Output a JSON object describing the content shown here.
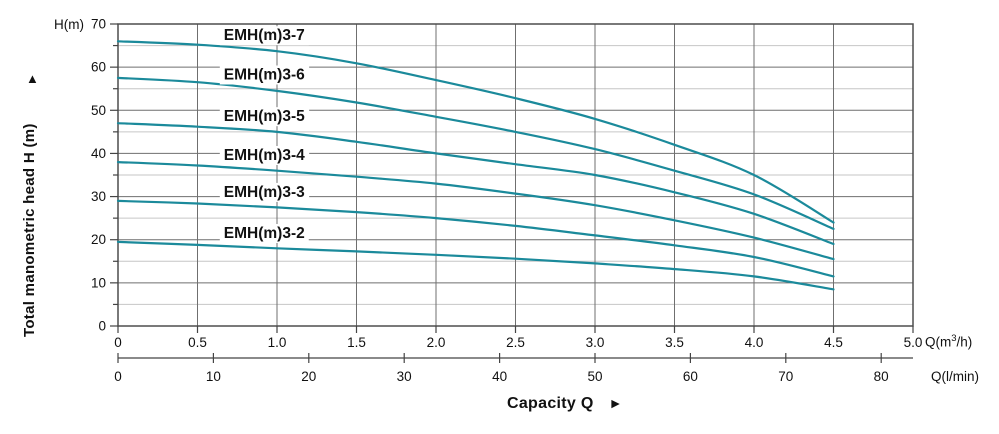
{
  "chart_data": {
    "type": "line",
    "title": "",
    "grid": true,
    "legend_position": "labels-above-curves",
    "colors": {
      "curve": "#1b8a9b",
      "grid_major": "#6f6f6f",
      "grid_minor": "#c6c6c6",
      "border": "#4d4d4d",
      "tick": "#444444",
      "text": "#111111"
    },
    "y_axis": {
      "unit_label": "H(m)",
      "title": "Total manometric head H (m)",
      "title_arrow": "▲",
      "ticks": [
        "0",
        "10",
        "20",
        "30",
        "40",
        "50",
        "60",
        "70"
      ],
      "minor_step": 5,
      "range": [
        0,
        70
      ]
    },
    "x_axis": {
      "title": "Capacity Q",
      "title_arrow": "►",
      "unit": {
        "prefix": "Q(m",
        "sup": "3",
        "suffix": "/h)"
      },
      "ticks": [
        "0",
        "0.5",
        "1.0",
        "1.5",
        "2.0",
        "2.5",
        "3.0",
        "3.5",
        "4.0",
        "4.5",
        "5.0"
      ],
      "range": [
        0,
        5.0
      ]
    },
    "x_axis2": {
      "unit_label": "Q(l/min)",
      "ticks": [
        "0",
        "10",
        "20",
        "30",
        "40",
        "50",
        "60",
        "70",
        "80"
      ]
    },
    "x": [
      0,
      0.5,
      1.0,
      1.5,
      2.0,
      2.5,
      3.0,
      3.5,
      4.0,
      4.5
    ],
    "series": [
      {
        "name": "EMH(m)3-7",
        "values": [
          66,
          65.2,
          63.7,
          60.9,
          57,
          52.8,
          48,
          42,
          35,
          24
        ]
      },
      {
        "name": "EMH(m)3-6",
        "values": [
          57.5,
          56.5,
          54.5,
          51.8,
          48.5,
          45,
          41,
          36,
          30.5,
          22.5
        ]
      },
      {
        "name": "EMH(m)3-5",
        "values": [
          47,
          46.2,
          45,
          42.7,
          40,
          37.5,
          35,
          31,
          26,
          19
        ]
      },
      {
        "name": "EMH(m)3-4",
        "values": [
          38,
          37.2,
          36,
          34.6,
          33,
          30.7,
          28,
          24.5,
          20.5,
          15.5
        ]
      },
      {
        "name": "EMH(m)3-3",
        "values": [
          29,
          28.4,
          27.5,
          26.4,
          25,
          23.2,
          21,
          18.7,
          16,
          11.5
        ]
      },
      {
        "name": "EMH(m)3-2",
        "values": [
          19.5,
          18.8,
          18,
          17.3,
          16.5,
          15.6,
          14.5,
          13.2,
          11.5,
          8.5
        ]
      }
    ]
  }
}
